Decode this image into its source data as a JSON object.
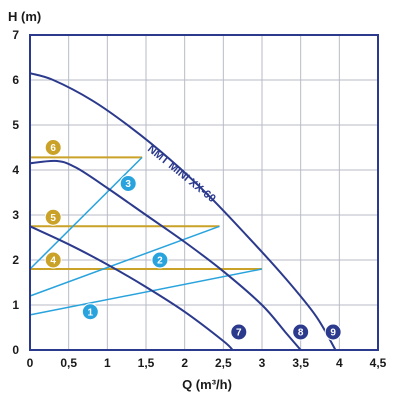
{
  "chart_data": {
    "type": "line",
    "xlabel": "Q (m³/h)",
    "ylabel": "H (m)",
    "xlim": [
      0,
      4.5
    ],
    "ylim": [
      0,
      7
    ],
    "x_ticks": [
      "0",
      "0,5",
      "1",
      "1,5",
      "2",
      "2,5",
      "3",
      "3,5",
      "4",
      "4,5"
    ],
    "y_ticks": [
      "0",
      "1",
      "2",
      "3",
      "4",
      "5",
      "6",
      "7"
    ],
    "grid": true,
    "curve_label": "NMT MINI XX-60",
    "pump_curves": [
      {
        "label": "7",
        "color": "#2b3a8c",
        "points": [
          [
            0,
            2.75
          ],
          [
            0.5,
            2.35
          ],
          [
            1,
            1.9
          ],
          [
            1.5,
            1.4
          ],
          [
            2,
            0.85
          ],
          [
            2.5,
            0.2
          ],
          [
            2.62,
            0
          ]
        ]
      },
      {
        "label": "8",
        "color": "#2b3a8c",
        "points": [
          [
            0,
            4.15
          ],
          [
            0.35,
            4.2
          ],
          [
            0.6,
            4.05
          ],
          [
            1,
            3.6
          ],
          [
            1.5,
            3.0
          ],
          [
            2,
            2.4
          ],
          [
            2.5,
            1.75
          ],
          [
            3,
            1.0
          ],
          [
            3.3,
            0.4
          ],
          [
            3.5,
            0
          ]
        ]
      },
      {
        "label": "9",
        "color": "#2b3a8c",
        "points": [
          [
            0,
            6.15
          ],
          [
            0.3,
            6.0
          ],
          [
            0.8,
            5.55
          ],
          [
            1.3,
            4.95
          ],
          [
            1.8,
            4.25
          ],
          [
            2.3,
            3.45
          ],
          [
            2.8,
            2.55
          ],
          [
            3.3,
            1.6
          ],
          [
            3.7,
            0.75
          ],
          [
            3.95,
            0
          ]
        ]
      }
    ],
    "system_curves": [
      {
        "label": "1",
        "color": "#29a3dd",
        "points": [
          [
            0,
            0.78
          ],
          [
            3,
            1.8
          ]
        ]
      },
      {
        "label": "2",
        "color": "#29a3dd",
        "points": [
          [
            0,
            1.2
          ],
          [
            2.45,
            2.75
          ]
        ]
      },
      {
        "label": "3",
        "color": "#29a3dd",
        "points": [
          [
            0,
            1.8
          ],
          [
            1.45,
            4.28
          ]
        ]
      }
    ],
    "levels": [
      {
        "label": "4",
        "color": "#c9a227",
        "y": 1.8,
        "x_end": 3.0
      },
      {
        "label": "5",
        "color": "#c9a227",
        "y": 2.75,
        "x_end": 2.45
      },
      {
        "label": "6",
        "color": "#c9a227",
        "y": 4.28,
        "x_end": 1.45
      }
    ],
    "badges": [
      {
        "label": "1",
        "color": "#29a3dd",
        "x": 0.78,
        "y": 0.85
      },
      {
        "label": "2",
        "color": "#29a3dd",
        "x": 1.68,
        "y": 2.0
      },
      {
        "label": "3",
        "color": "#29a3dd",
        "x": 1.27,
        "y": 3.7
      },
      {
        "label": "4",
        "color": "#c9a227",
        "x": 0.3,
        "y": 2.0
      },
      {
        "label": "5",
        "color": "#c9a227",
        "x": 0.3,
        "y": 2.95
      },
      {
        "label": "6",
        "color": "#c9a227",
        "x": 0.3,
        "y": 4.5
      },
      {
        "label": "7",
        "color": "#2b3a8c",
        "x": 2.7,
        "y": 0.4
      },
      {
        "label": "8",
        "color": "#2b3a8c",
        "x": 3.5,
        "y": 0.4
      },
      {
        "label": "9",
        "color": "#2b3a8c",
        "x": 3.92,
        "y": 0.4
      }
    ],
    "colors": {
      "axis": "#2b3a8c",
      "grid": "#b8bbc7"
    }
  }
}
